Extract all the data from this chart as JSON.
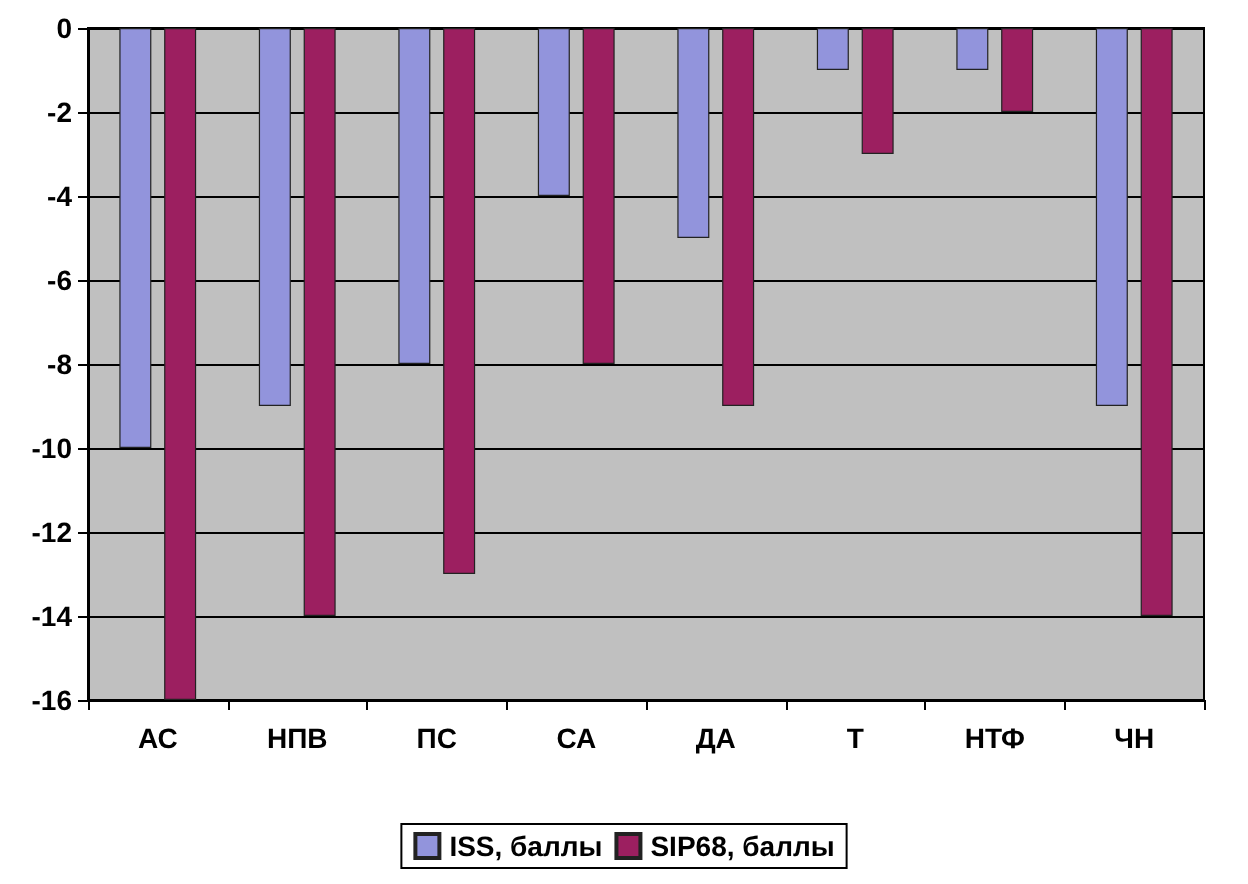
{
  "chart_data": {
    "type": "bar",
    "categories": [
      "АС",
      "НПВ",
      "ПС",
      "СА",
      "ДА",
      "Т",
      "НТФ",
      "ЧН"
    ],
    "series": [
      {
        "name": "ISS, баллы",
        "color": "#9294dc",
        "values": [
          -10,
          -9,
          -8,
          -4,
          -5,
          -1,
          -1,
          -9
        ]
      },
      {
        "name": "SIP68, баллы",
        "color": "#9c1f60",
        "values": [
          -16,
          -14,
          -13,
          -8,
          -9,
          -3,
          -2,
          -14
        ]
      }
    ],
    "ylim": [
      -16,
      0
    ],
    "yticks": [
      -16,
      -14,
      -12,
      -10,
      -8,
      -6,
      -4,
      -2,
      0
    ],
    "grid": "y",
    "legend": "bottom"
  }
}
